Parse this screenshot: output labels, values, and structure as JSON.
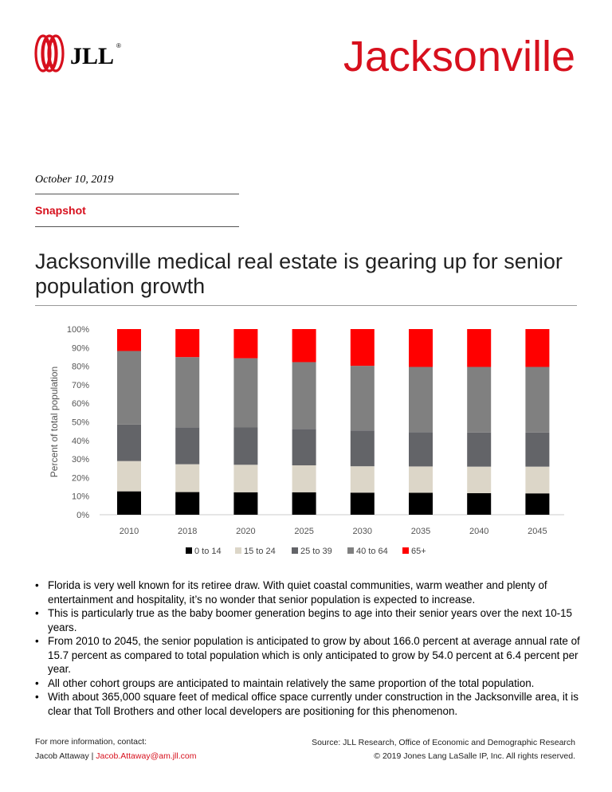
{
  "header": {
    "logo_text": "JLL",
    "city": "Jacksonville",
    "date": "October 10, 2019",
    "section": "Snapshot",
    "headline": "Jacksonville medical real estate is gearing up for senior population growth"
  },
  "chart_data": {
    "type": "bar",
    "stacked": true,
    "ylabel": "Percent of total population",
    "ylim": [
      0,
      100
    ],
    "yticks": [
      "0%",
      "10%",
      "20%",
      "30%",
      "40%",
      "50%",
      "60%",
      "70%",
      "80%",
      "90%",
      "100%"
    ],
    "categories": [
      "2010",
      "2018",
      "2020",
      "2025",
      "2030",
      "2035",
      "2040",
      "2045"
    ],
    "legend_position": "bottom",
    "series": [
      {
        "name": "0 to 14",
        "color": "#000000",
        "values": [
          12.6,
          12.2,
          12.1,
          12.1,
          11.9,
          11.8,
          11.6,
          11.5
        ]
      },
      {
        "name": "15 to 24",
        "color": "#dcd6c8",
        "values": [
          16.3,
          15.0,
          14.8,
          14.5,
          14.2,
          14.2,
          14.3,
          14.4
        ]
      },
      {
        "name": "25 to 39",
        "color": "#636468",
        "values": [
          19.7,
          19.9,
          20.1,
          19.5,
          19.3,
          18.5,
          18.4,
          18.4
        ]
      },
      {
        "name": "40 to 64",
        "color": "#808080",
        "values": [
          39.6,
          37.8,
          37.3,
          36.1,
          34.8,
          35.1,
          35.3,
          35.3
        ]
      },
      {
        "name": "65+",
        "color": "#ff0000",
        "values": [
          11.8,
          15.1,
          15.7,
          17.8,
          19.8,
          20.4,
          20.4,
          20.4
        ]
      }
    ]
  },
  "bullets": [
    "Florida is very well known for its retiree draw.  With quiet coastal communities, warm weather and plenty of entertainment and hospitality, it’s no wonder that senior population is expected to increase.",
    "This is particularly true as the baby boomer generation begins to age into their senior years over the next 10-15 years.",
    "From 2010 to 2045, the senior population is anticipated to grow by about 166.0 percent at average annual rate of 15.7 percent as compared to total population which is only anticipated to grow by 54.0 percent at 6.4 percent per year.",
    "All other cohort groups are anticipated to maintain relatively the same proportion of the total population.",
    "With about 365,000 square feet of medical office space currently under construction in the Jacksonville area, it is clear that Toll Brothers and other local developers are positioning for this phenomenon."
  ],
  "footer": {
    "contact_label": "For more information, contact:",
    "contact_name": "Jacob Attaway | ",
    "contact_email": "Jacob.Attaway@am.jll.com",
    "source": "Source: JLL Research, Office of Economic and Demographic Research",
    "copyright": "© 2019 Jones Lang LaSalle IP, Inc. All rights reserved."
  }
}
